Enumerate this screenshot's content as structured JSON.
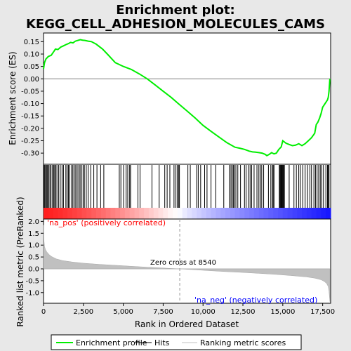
{
  "chart_data": {
    "type": "line",
    "title_line1": "Enrichment plot:",
    "title_line2": "KEGG_CELL_ADHESION_MOLECULES_CAMS",
    "panels": {
      "top": {
        "ylabel": "Enrichment score (ES)",
        "ylim": [
          -0.345,
          0.185
        ],
        "yticks": [
          0.15,
          0.1,
          0.05,
          0.0,
          -0.05,
          -0.1,
          -0.15,
          -0.2,
          -0.25,
          -0.3
        ],
        "ytick_labels": [
          "0.15",
          "0.10",
          "0.05",
          "0.00",
          "-0.05",
          "-0.10",
          "-0.15",
          "-0.20",
          "-0.25",
          "-0.30"
        ],
        "series": [
          {
            "name": "Enrichment profile",
            "color": "#00ee00",
            "x": [
              0,
              60,
              150,
              300,
              480,
              620,
              750,
              900,
              1080,
              1250,
              1400,
              1550,
              1700,
              1850,
              2000,
              2150,
              2300,
              2450,
              2600,
              2800,
              3000,
              3300,
              3700,
              4000,
              4500,
              5000,
              5500,
              6000,
              6500,
              7000,
              7500,
              8000,
              8540,
              9000,
              9500,
              10000,
              10500,
              11000,
              11500,
              12000,
              12300,
              12600,
              12900,
              13100,
              13300,
              13500,
              13700,
              13900,
              14000,
              14150,
              14300,
              14450,
              14600,
              14750,
              14900,
              15000,
              15200,
              15400,
              15600,
              15800,
              16000,
              16200,
              16400,
              16600,
              16800,
              17000,
              17100,
              17200,
              17300,
              17400,
              17500,
              17600,
              17700,
              17800,
              17850,
              17900,
              17950
            ],
            "values": [
              0.04,
              0.065,
              0.08,
              0.09,
              0.095,
              0.108,
              0.12,
              0.118,
              0.128,
              0.133,
              0.138,
              0.142,
              0.147,
              0.145,
              0.152,
              0.155,
              0.158,
              0.156,
              0.155,
              0.152,
              0.15,
              0.14,
              0.12,
              0.1,
              0.065,
              0.05,
              0.038,
              0.02,
              0.0,
              -0.025,
              -0.05,
              -0.075,
              -0.105,
              -0.13,
              -0.158,
              -0.188,
              -0.212,
              -0.235,
              -0.258,
              -0.276,
              -0.28,
              -0.285,
              -0.292,
              -0.295,
              -0.296,
              -0.298,
              -0.3,
              -0.305,
              -0.31,
              -0.305,
              -0.298,
              -0.303,
              -0.3,
              -0.285,
              -0.275,
              -0.25,
              -0.26,
              -0.265,
              -0.27,
              -0.268,
              -0.262,
              -0.27,
              -0.262,
              -0.25,
              -0.238,
              -0.22,
              -0.185,
              -0.175,
              -0.16,
              -0.14,
              -0.115,
              -0.105,
              -0.095,
              -0.085,
              -0.075,
              -0.05,
              0.0
            ]
          }
        ]
      },
      "middle": {
        "name": "Hits",
        "hits": [
          40,
          90,
          150,
          210,
          260,
          320,
          400,
          470,
          560,
          640,
          700,
          760,
          840,
          950,
          1050,
          1160,
          1250,
          1400,
          1480,
          1560,
          1640,
          1760,
          1840,
          1930,
          2020,
          2110,
          2210,
          2290,
          2380,
          2480,
          2560,
          2680,
          2800,
          2960,
          3150,
          3350,
          3580,
          3780,
          4750,
          4850,
          5020,
          5180,
          5280,
          5400,
          5460,
          5920,
          6050,
          6800,
          7250,
          7600,
          7750,
          7920,
          8180,
          8300,
          8400,
          8460,
          8520,
          9050,
          9200,
          9600,
          9700,
          9850,
          10100,
          10250,
          10500,
          10800,
          11300,
          11650,
          11750,
          11830,
          11900,
          11980,
          12060,
          12180,
          12350,
          12600,
          12700,
          12850,
          12950,
          13050,
          13200,
          13380,
          13500,
          13600,
          13680,
          13800,
          14100,
          14250,
          14350,
          14400,
          14450,
          14780,
          14820,
          14860,
          14900,
          14940,
          14980,
          15020,
          15060,
          15100,
          15400,
          15700,
          15850,
          16000,
          16100,
          16250,
          16400,
          16550,
          16700,
          16800,
          16950,
          17050,
          17150,
          17250,
          17350,
          17450,
          17550,
          17700,
          17800,
          17850,
          17900
        ]
      },
      "bottom": {
        "ylabel": "Ranked list metric (PreRanked)",
        "xlabel": "Rank in Ordered Dataset",
        "ylim": [
          -1.45,
          2.1
        ],
        "yticks": [
          2.0,
          1.5,
          1.0,
          0.5,
          0.0,
          -0.5,
          -1.0
        ],
        "ytick_labels": [
          "2.0",
          "1.5",
          "1.0",
          "0.5",
          "0.0",
          "-0.5",
          "-1.0"
        ],
        "series": [
          {
            "name": "Ranking metric scores",
            "color": "#c0c0c0",
            "x": [
              0,
              20,
              60,
              120,
              200,
              350,
              500,
              800,
              1200,
              1800,
              2500,
              3500,
              4500,
              5500,
              6500,
              7500,
              8540,
              9500,
              10500,
              11500,
              12500,
              13500,
              14500,
              15500,
              16500,
              17000,
              17400,
              17600,
              17750,
              17850,
              17900,
              17950
            ],
            "values": [
              1.85,
              1.25,
              0.95,
              0.82,
              0.72,
              0.6,
              0.52,
              0.42,
              0.35,
              0.29,
              0.24,
              0.19,
              0.15,
              0.11,
              0.07,
              0.035,
              0.0,
              -0.04,
              -0.08,
              -0.12,
              -0.15,
              -0.19,
              -0.23,
              -0.28,
              -0.34,
              -0.39,
              -0.46,
              -0.53,
              -0.62,
              -0.75,
              -0.95,
              -1.38
            ]
          }
        ],
        "annotations": {
          "pos_label": "'na_pos' (positively correlated)",
          "neg_label": "'na_neg' (negatively correlated)",
          "zero_cross": "Zero cross at 8540",
          "zero_cross_rank": 8540
        }
      }
    },
    "xlim": [
      0,
      18000
    ],
    "xticks": [
      0,
      2500,
      5000,
      7500,
      10000,
      12500,
      15000,
      17500
    ],
    "xtick_labels": [
      "0",
      "2,500",
      "5,000",
      "7,500",
      "10,000",
      "12,500",
      "15,000",
      "17,500"
    ],
    "legend": {
      "placement": "bottom",
      "items": [
        {
          "label": "Enrichment profile",
          "color": "#00ee00"
        },
        {
          "label": "Hits",
          "color": "#000000"
        },
        {
          "label": "Ranking metric scores",
          "color": "#c0c0c0"
        }
      ]
    },
    "colors": {
      "background": "#e8e8e8",
      "panel": "#ffffff",
      "pos_text": "#ff0000",
      "neg_text": "#0000ff",
      "pos_bar": "#ff0000",
      "neg_bar": "#0000ff"
    }
  }
}
